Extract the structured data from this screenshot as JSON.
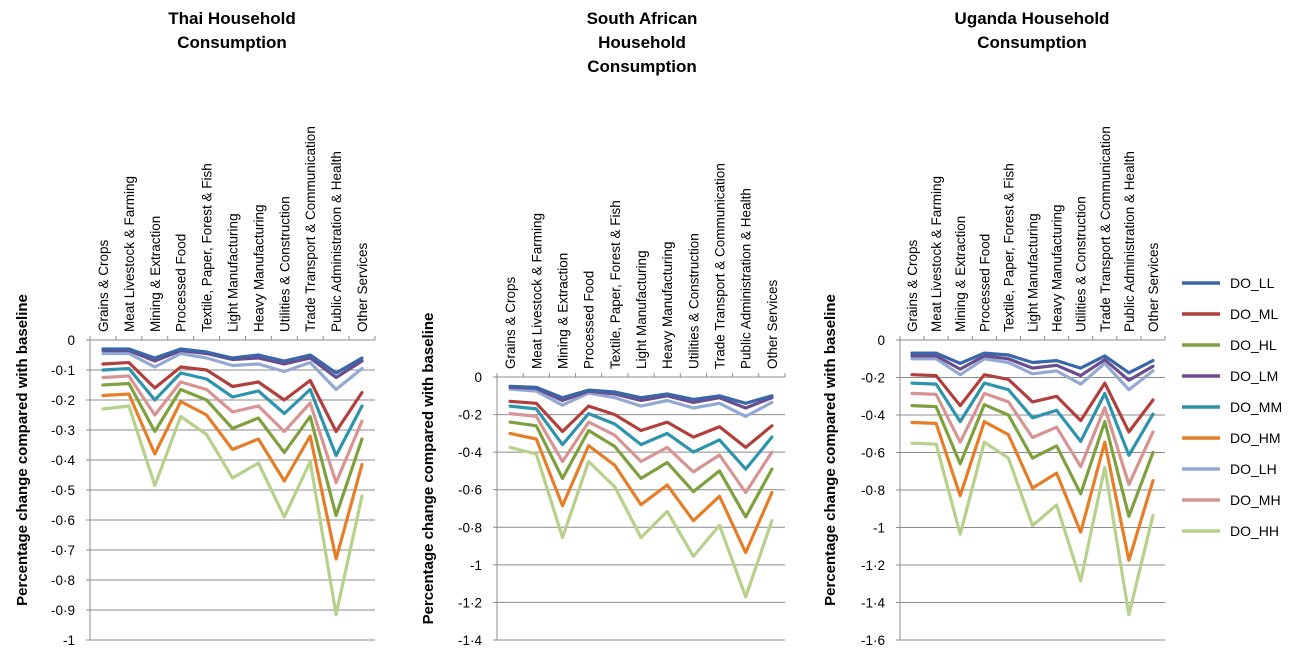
{
  "legend": {
    "series": [
      {
        "name": "DO_LL",
        "color": "#3A67A8"
      },
      {
        "name": "DO_ML",
        "color": "#B1403D"
      },
      {
        "name": "DO_HL",
        "color": "#7EA03E"
      },
      {
        "name": "DO_LM",
        "color": "#6A4D8E"
      },
      {
        "name": "DO_MM",
        "color": "#2E93AC"
      },
      {
        "name": "DO_HM",
        "color": "#E57E29"
      },
      {
        "name": "DO_LH",
        "color": "#93A9D3"
      },
      {
        "name": "DO_MH",
        "color": "#D79493"
      },
      {
        "name": "DO_HH",
        "color": "#B7D08C"
      }
    ]
  },
  "chart_data": [
    {
      "type": "line",
      "title_lines": [
        "Thai Household",
        "Consumption"
      ],
      "ylabel": "Percentage change compared with baseline",
      "categories": [
        "Grains & Crops",
        "Meat Livestock & Farming",
        "Mining & Extraction",
        "Processed Food",
        "Textile, Paper, Forest & Fish",
        "Light Manufacturing",
        "Heavy Manufacturing",
        "Utilities & Construction",
        "Trade Transport & Communication",
        "Public Administration & Health",
        "Other Services"
      ],
      "ylim": [
        -1,
        0
      ],
      "yticks": [
        0,
        -0.1,
        -0.2,
        -0.3,
        -0.4,
        -0.5,
        -0.6,
        -0.7,
        -0.8,
        -0.9,
        -1
      ],
      "ytick_labels": [
        "0",
        "-0·1",
        "-0·2",
        "-0·3",
        "-0·4",
        "-0·5",
        "-0·6",
        "-0·7",
        "-0·8",
        "-0·9",
        "-1"
      ],
      "series": [
        {
          "name": "DO_LL",
          "values": [
            -0.03,
            -0.03,
            -0.06,
            -0.03,
            -0.04,
            -0.06,
            -0.05,
            -0.07,
            -0.05,
            -0.11,
            -0.06
          ]
        },
        {
          "name": "DO_ML",
          "values": [
            -0.08,
            -0.075,
            -0.16,
            -0.09,
            -0.1,
            -0.155,
            -0.14,
            -0.2,
            -0.135,
            -0.305,
            -0.175
          ]
        },
        {
          "name": "DO_HL",
          "values": [
            -0.15,
            -0.145,
            -0.305,
            -0.165,
            -0.2,
            -0.295,
            -0.26,
            -0.375,
            -0.255,
            -0.585,
            -0.33
          ]
        },
        {
          "name": "DO_LM",
          "values": [
            -0.035,
            -0.035,
            -0.07,
            -0.035,
            -0.045,
            -0.065,
            -0.06,
            -0.08,
            -0.06,
            -0.125,
            -0.07
          ]
        },
        {
          "name": "DO_MM",
          "values": [
            -0.1,
            -0.095,
            -0.2,
            -0.11,
            -0.13,
            -0.19,
            -0.17,
            -0.245,
            -0.165,
            -0.385,
            -0.22
          ]
        },
        {
          "name": "DO_HM",
          "values": [
            -0.185,
            -0.18,
            -0.38,
            -0.205,
            -0.25,
            -0.365,
            -0.33,
            -0.47,
            -0.32,
            -0.73,
            -0.415
          ]
        },
        {
          "name": "DO_LH",
          "values": [
            -0.045,
            -0.045,
            -0.09,
            -0.045,
            -0.06,
            -0.085,
            -0.08,
            -0.105,
            -0.075,
            -0.165,
            -0.095
          ]
        },
        {
          "name": "DO_MH",
          "values": [
            -0.125,
            -0.12,
            -0.25,
            -0.14,
            -0.165,
            -0.24,
            -0.22,
            -0.305,
            -0.21,
            -0.475,
            -0.27
          ]
        },
        {
          "name": "DO_HH",
          "values": [
            -0.23,
            -0.22,
            -0.485,
            -0.255,
            -0.315,
            -0.46,
            -0.41,
            -0.59,
            -0.405,
            -0.915,
            -0.52
          ]
        }
      ]
    },
    {
      "type": "line",
      "title_lines": [
        "South African",
        "Household",
        "Consumption"
      ],
      "ylabel": "Percentage change compared with baseline",
      "categories": [
        "Grains & Crops",
        "Meat Livestock & Farming",
        "Mining & Extraction",
        "Processed Food",
        "Textile, Paper, Forest & Fish",
        "Light Manufacturing",
        "Heavy Manufacturing",
        "Utilities & Construction",
        "Trade Transport & Communication",
        "Public Administration & Health",
        "Other Services"
      ],
      "ylim": [
        -1.4,
        0
      ],
      "yticks": [
        0,
        -0.2,
        -0.4,
        -0.6,
        -0.8,
        -1,
        -1.2,
        -1.4
      ],
      "ytick_labels": [
        "0",
        "-0·2",
        "-0·4",
        "-0·6",
        "-0·8",
        "-1",
        "-1·2",
        "-1·4"
      ],
      "series": [
        {
          "name": "DO_LL",
          "values": [
            -0.05,
            -0.055,
            -0.11,
            -0.07,
            -0.08,
            -0.11,
            -0.09,
            -0.12,
            -0.1,
            -0.14,
            -0.1
          ]
        },
        {
          "name": "DO_ML",
          "values": [
            -0.13,
            -0.14,
            -0.29,
            -0.155,
            -0.2,
            -0.285,
            -0.24,
            -0.32,
            -0.265,
            -0.375,
            -0.26
          ]
        },
        {
          "name": "DO_HL",
          "values": [
            -0.24,
            -0.26,
            -0.54,
            -0.285,
            -0.37,
            -0.54,
            -0.455,
            -0.61,
            -0.5,
            -0.745,
            -0.49
          ]
        },
        {
          "name": "DO_LM",
          "values": [
            -0.055,
            -0.06,
            -0.125,
            -0.075,
            -0.09,
            -0.125,
            -0.1,
            -0.135,
            -0.11,
            -0.165,
            -0.11
          ]
        },
        {
          "name": "DO_MM",
          "values": [
            -0.155,
            -0.17,
            -0.36,
            -0.195,
            -0.25,
            -0.36,
            -0.3,
            -0.4,
            -0.335,
            -0.49,
            -0.32
          ]
        },
        {
          "name": "DO_HM",
          "values": [
            -0.3,
            -0.33,
            -0.685,
            -0.365,
            -0.47,
            -0.68,
            -0.575,
            -0.765,
            -0.635,
            -0.935,
            -0.615
          ]
        },
        {
          "name": "DO_LH",
          "values": [
            -0.065,
            -0.075,
            -0.15,
            -0.085,
            -0.11,
            -0.155,
            -0.125,
            -0.165,
            -0.14,
            -0.21,
            -0.135
          ]
        },
        {
          "name": "DO_MH",
          "values": [
            -0.195,
            -0.21,
            -0.45,
            -0.24,
            -0.31,
            -0.45,
            -0.375,
            -0.505,
            -0.415,
            -0.615,
            -0.4
          ]
        },
        {
          "name": "DO_HH",
          "values": [
            -0.375,
            -0.41,
            -0.855,
            -0.45,
            -0.585,
            -0.855,
            -0.715,
            -0.955,
            -0.79,
            -1.17,
            -0.765
          ]
        }
      ]
    },
    {
      "type": "line",
      "title_lines": [
        "Uganda Household",
        "Consumption"
      ],
      "ylabel": "Percentage change compared with baseline",
      "categories": [
        "Grains & Crops",
        "Meat Livestock & Farming",
        "Mining & Extraction",
        "Processed Food",
        "Textile, Paper, Forest & Fish",
        "Light Manufacturing",
        "Heavy Manufacturing",
        "Utilities & Construction",
        "Trade Transport & Communication",
        "Public Administration & Health",
        "Other Services"
      ],
      "ylim": [
        -1.6,
        0
      ],
      "yticks": [
        0,
        -0.2,
        -0.4,
        -0.6,
        -0.8,
        -1,
        -1.2,
        -1.4,
        -1.6
      ],
      "ytick_labels": [
        "0",
        "-0·2",
        "-0·4",
        "-0·6",
        "-0·8",
        "-1",
        "-1·2",
        "-1·4",
        "-1·6"
      ],
      "series": [
        {
          "name": "DO_LL",
          "values": [
            -0.07,
            -0.07,
            -0.125,
            -0.07,
            -0.08,
            -0.12,
            -0.11,
            -0.15,
            -0.085,
            -0.175,
            -0.11
          ]
        },
        {
          "name": "DO_ML",
          "values": [
            -0.185,
            -0.19,
            -0.35,
            -0.185,
            -0.21,
            -0.33,
            -0.3,
            -0.43,
            -0.23,
            -0.49,
            -0.32
          ]
        },
        {
          "name": "DO_HL",
          "values": [
            -0.35,
            -0.355,
            -0.66,
            -0.345,
            -0.4,
            -0.63,
            -0.565,
            -0.82,
            -0.435,
            -0.94,
            -0.6
          ]
        },
        {
          "name": "DO_LM",
          "values": [
            -0.085,
            -0.085,
            -0.155,
            -0.085,
            -0.1,
            -0.15,
            -0.135,
            -0.19,
            -0.105,
            -0.215,
            -0.14
          ]
        },
        {
          "name": "DO_MM",
          "values": [
            -0.23,
            -0.235,
            -0.435,
            -0.23,
            -0.265,
            -0.415,
            -0.375,
            -0.54,
            -0.285,
            -0.615,
            -0.395
          ]
        },
        {
          "name": "DO_HM",
          "values": [
            -0.44,
            -0.445,
            -0.83,
            -0.435,
            -0.505,
            -0.79,
            -0.71,
            -1.025,
            -0.545,
            -1.175,
            -0.75
          ]
        },
        {
          "name": "DO_LH",
          "values": [
            -0.1,
            -0.1,
            -0.185,
            -0.1,
            -0.12,
            -0.18,
            -0.165,
            -0.235,
            -0.125,
            -0.265,
            -0.165
          ]
        },
        {
          "name": "DO_MH",
          "values": [
            -0.285,
            -0.29,
            -0.545,
            -0.285,
            -0.33,
            -0.52,
            -0.465,
            -0.675,
            -0.36,
            -0.77,
            -0.49
          ]
        },
        {
          "name": "DO_HH",
          "values": [
            -0.55,
            -0.555,
            -1.035,
            -0.545,
            -0.63,
            -0.99,
            -0.88,
            -1.285,
            -0.68,
            -1.465,
            -0.935
          ]
        }
      ]
    }
  ]
}
